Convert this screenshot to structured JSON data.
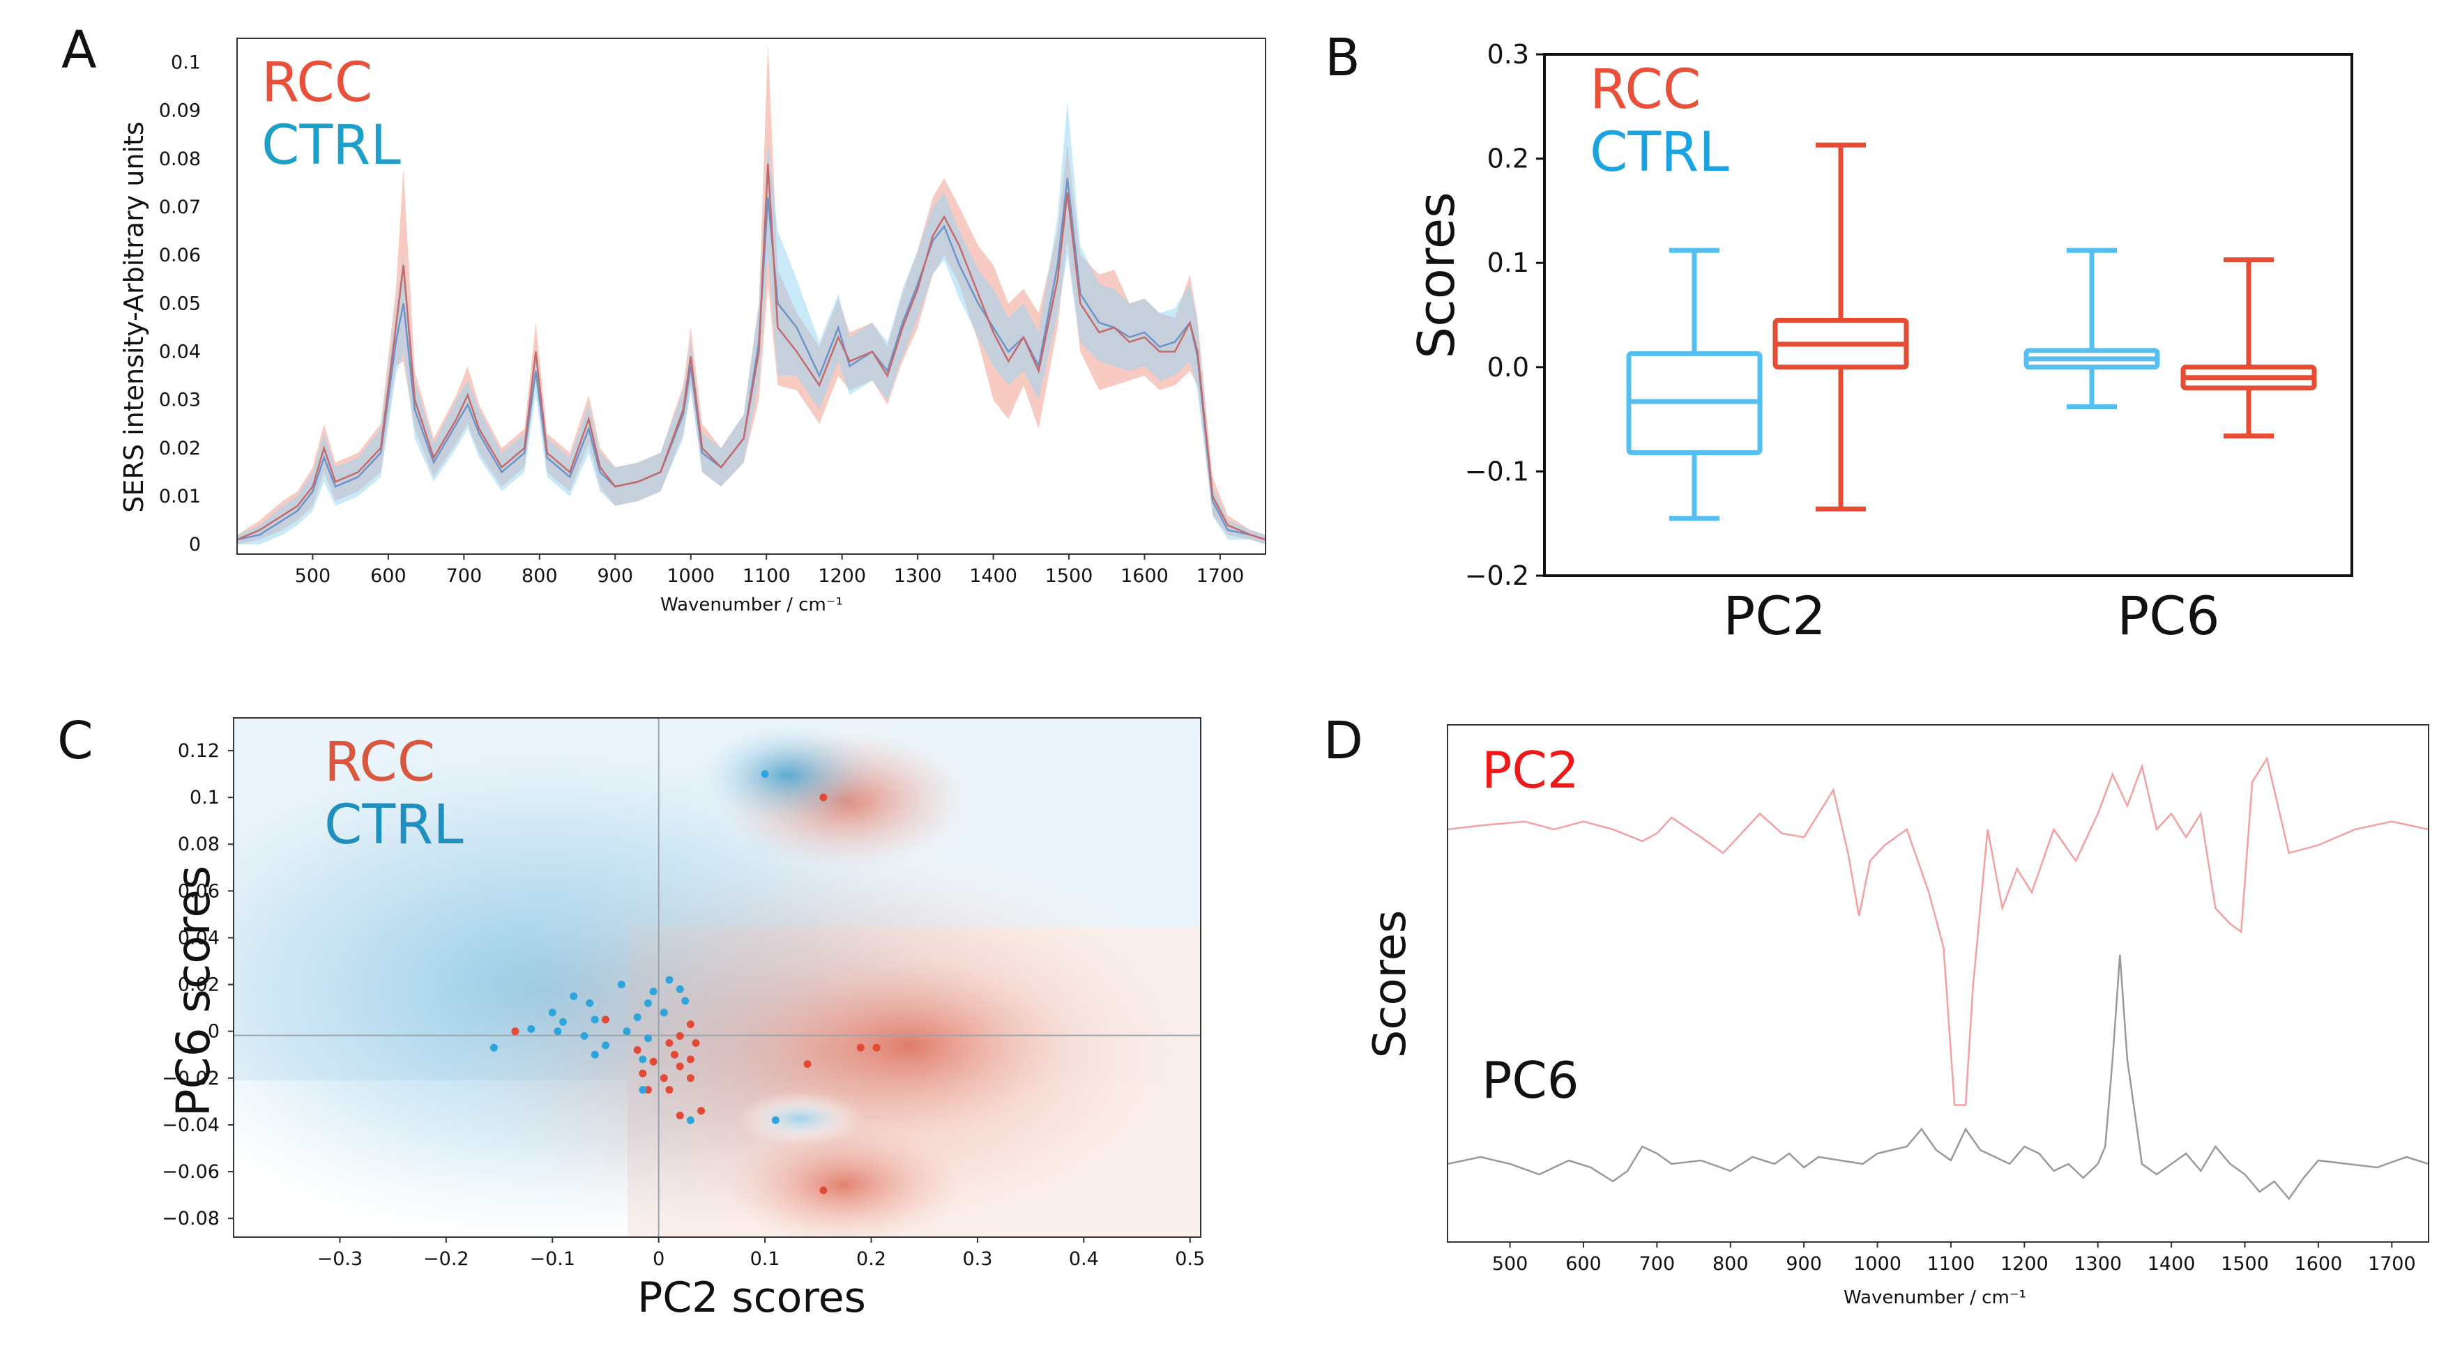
{
  "colors": {
    "rcc": "#e8503a",
    "ctrl": "#1f9fc8",
    "rcc_fill": "#f2a89a",
    "ctrl_fill": "#9dd6f2",
    "box_rcc": "#e64b33",
    "box_ctrl": "#55bff2",
    "pc2_line": "#f4a0a0",
    "pc6_line": "#999999"
  },
  "chart_data": [
    {
      "panel": "A",
      "type": "line",
      "ylabel": "SERS intensity-Arbitrary units",
      "xlabel": "Wavenumber / cm⁻¹",
      "xlim": [
        400,
        1760
      ],
      "ylim": [
        -0.002,
        0.105
      ],
      "xticks": [
        500,
        600,
        700,
        800,
        900,
        1000,
        1100,
        1200,
        1300,
        1400,
        1500,
        1600,
        1700
      ],
      "yticks": [
        0,
        0.01,
        0.02,
        0.03,
        0.04,
        0.05,
        0.06,
        0.07,
        0.08,
        0.09,
        0.1
      ],
      "ytick_labels": [
        "0",
        "0.01",
        "0.02",
        "0.03",
        "0.04",
        "0.05",
        "0.06",
        "0.07",
        "0.08",
        "0.09",
        "0.1"
      ],
      "legend": [
        "RCC",
        "CTRL"
      ],
      "series": [
        {
          "name": "RCC",
          "x": [
            400,
            430,
            460,
            480,
            500,
            515,
            530,
            560,
            590,
            610,
            620,
            635,
            660,
            690,
            705,
            720,
            750,
            780,
            795,
            810,
            840,
            865,
            880,
            900,
            930,
            960,
            990,
            1000,
            1015,
            1040,
            1070,
            1090,
            1102,
            1115,
            1140,
            1170,
            1195,
            1210,
            1240,
            1260,
            1280,
            1300,
            1320,
            1335,
            1355,
            1380,
            1400,
            1420,
            1440,
            1460,
            1485,
            1498,
            1515,
            1540,
            1560,
            1580,
            1600,
            1620,
            1640,
            1660,
            1670,
            1690,
            1710,
            1740,
            1760
          ],
          "mean": [
            0.001,
            0.003,
            0.006,
            0.008,
            0.012,
            0.02,
            0.013,
            0.015,
            0.02,
            0.045,
            0.058,
            0.03,
            0.018,
            0.026,
            0.031,
            0.024,
            0.016,
            0.02,
            0.04,
            0.019,
            0.015,
            0.026,
            0.016,
            0.012,
            0.013,
            0.015,
            0.028,
            0.039,
            0.02,
            0.016,
            0.022,
            0.04,
            0.079,
            0.045,
            0.04,
            0.033,
            0.043,
            0.038,
            0.04,
            0.035,
            0.045,
            0.053,
            0.064,
            0.068,
            0.062,
            0.052,
            0.044,
            0.038,
            0.043,
            0.036,
            0.055,
            0.073,
            0.05,
            0.044,
            0.045,
            0.042,
            0.043,
            0.04,
            0.04,
            0.046,
            0.04,
            0.01,
            0.004,
            0.002,
            0.001
          ],
          "band": [
            0.001,
            0.002,
            0.003,
            0.003,
            0.004,
            0.005,
            0.004,
            0.004,
            0.005,
            0.008,
            0.02,
            0.006,
            0.004,
            0.005,
            0.006,
            0.005,
            0.004,
            0.004,
            0.006,
            0.004,
            0.004,
            0.005,
            0.004,
            0.004,
            0.004,
            0.004,
            0.005,
            0.006,
            0.005,
            0.004,
            0.005,
            0.01,
            0.025,
            0.012,
            0.008,
            0.008,
            0.008,
            0.006,
            0.006,
            0.006,
            0.007,
            0.008,
            0.008,
            0.008,
            0.008,
            0.01,
            0.014,
            0.012,
            0.01,
            0.012,
            0.01,
            0.01,
            0.01,
            0.012,
            0.012,
            0.008,
            0.008,
            0.008,
            0.007,
            0.01,
            0.007,
            0.004,
            0.002,
            0.001,
            0.001
          ]
        },
        {
          "name": "CTRL",
          "x": [
            400,
            430,
            460,
            480,
            500,
            515,
            530,
            560,
            590,
            610,
            620,
            635,
            660,
            690,
            705,
            720,
            750,
            780,
            795,
            810,
            840,
            865,
            880,
            900,
            930,
            960,
            990,
            1000,
            1015,
            1040,
            1070,
            1090,
            1102,
            1115,
            1140,
            1170,
            1195,
            1210,
            1240,
            1260,
            1280,
            1300,
            1320,
            1335,
            1355,
            1380,
            1400,
            1420,
            1440,
            1460,
            1485,
            1498,
            1515,
            1540,
            1560,
            1580,
            1600,
            1620,
            1640,
            1660,
            1670,
            1690,
            1710,
            1740,
            1760
          ],
          "mean": [
            0.001,
            0.002,
            0.005,
            0.007,
            0.011,
            0.018,
            0.012,
            0.014,
            0.019,
            0.042,
            0.05,
            0.028,
            0.017,
            0.025,
            0.029,
            0.023,
            0.015,
            0.019,
            0.036,
            0.018,
            0.014,
            0.024,
            0.015,
            0.012,
            0.013,
            0.015,
            0.027,
            0.037,
            0.019,
            0.016,
            0.022,
            0.042,
            0.072,
            0.05,
            0.045,
            0.035,
            0.045,
            0.037,
            0.04,
            0.036,
            0.046,
            0.054,
            0.063,
            0.066,
            0.058,
            0.05,
            0.045,
            0.04,
            0.043,
            0.037,
            0.058,
            0.076,
            0.052,
            0.046,
            0.045,
            0.043,
            0.044,
            0.041,
            0.042,
            0.046,
            0.039,
            0.009,
            0.003,
            0.002,
            0.001
          ],
          "band": [
            0.001,
            0.002,
            0.003,
            0.003,
            0.004,
            0.005,
            0.004,
            0.004,
            0.005,
            0.007,
            0.01,
            0.006,
            0.004,
            0.005,
            0.005,
            0.005,
            0.004,
            0.004,
            0.005,
            0.004,
            0.004,
            0.005,
            0.004,
            0.004,
            0.004,
            0.004,
            0.005,
            0.005,
            0.004,
            0.004,
            0.005,
            0.008,
            0.012,
            0.015,
            0.01,
            0.007,
            0.007,
            0.006,
            0.006,
            0.006,
            0.007,
            0.007,
            0.007,
            0.007,
            0.007,
            0.007,
            0.008,
            0.007,
            0.007,
            0.007,
            0.01,
            0.016,
            0.01,
            0.008,
            0.008,
            0.007,
            0.007,
            0.007,
            0.007,
            0.008,
            0.007,
            0.003,
            0.002,
            0.001,
            0.001
          ]
        }
      ]
    },
    {
      "panel": "B",
      "type": "box",
      "ylabel": "Scores",
      "ylim": [
        -0.2,
        0.3
      ],
      "yticks": [
        -0.2,
        -0.1,
        0.0,
        0.1,
        0.2,
        0.3
      ],
      "ytick_labels": [
        "−0.2",
        "−0.1",
        "0.0",
        "0.1",
        "0.2",
        "0.3"
      ],
      "categories": [
        "PC2",
        "PC6"
      ],
      "legend": [
        "RCC",
        "CTRL"
      ],
      "boxes": [
        {
          "group": "CTRL",
          "category": "PC2",
          "whislo": -0.145,
          "q1": -0.082,
          "med": -0.033,
          "q3": 0.013,
          "whishi": 0.112
        },
        {
          "group": "RCC",
          "category": "PC2",
          "whislo": -0.136,
          "q1": 0.0,
          "med": 0.022,
          "q3": 0.045,
          "whishi": 0.213
        },
        {
          "group": "CTRL",
          "category": "PC6",
          "whislo": -0.038,
          "q1": 0.0,
          "med": 0.008,
          "q3": 0.016,
          "whishi": 0.112
        },
        {
          "group": "RCC",
          "category": "PC6",
          "whislo": -0.066,
          "q1": -0.02,
          "med": -0.01,
          "q3": 0.0,
          "whishi": 0.103
        }
      ]
    },
    {
      "panel": "C",
      "type": "scatter",
      "xlabel": "PC2 scores",
      "ylabel": "PC6 scores",
      "xlim": [
        -0.4,
        0.51
      ],
      "ylim": [
        -0.088,
        0.134
      ],
      "xticks": [
        -0.3,
        -0.2,
        -0.1,
        0,
        0.1,
        0.2,
        0.3,
        0.4,
        0.5
      ],
      "xtick_labels": [
        "−0.3",
        "−0.2",
        "−0.1",
        "0",
        "0.1",
        "0.2",
        "0.3",
        "0.4",
        "0.5"
      ],
      "yticks": [
        -0.08,
        -0.06,
        -0.04,
        -0.02,
        0,
        0.02,
        0.04,
        0.06,
        0.08,
        0.1,
        0.12
      ],
      "ytick_labels": [
        "−0.08",
        "−0.06",
        "−0.04",
        "−0.02",
        "0",
        "0.02",
        "0.04",
        "0.06",
        "0.08",
        "0.1",
        "0.12"
      ],
      "legend": [
        "RCC",
        "CTRL"
      ],
      "series": [
        {
          "name": "RCC",
          "points": [
            [
              0.155,
              0.1
            ],
            [
              -0.135,
              0.0
            ],
            [
              -0.05,
              0.005
            ],
            [
              0.03,
              0.003
            ],
            [
              0.02,
              -0.002
            ],
            [
              0.01,
              -0.005
            ],
            [
              0.035,
              -0.005
            ],
            [
              -0.02,
              -0.008
            ],
            [
              0.015,
              -0.01
            ],
            [
              0.03,
              -0.012
            ],
            [
              -0.005,
              -0.013
            ],
            [
              0.02,
              -0.015
            ],
            [
              -0.015,
              -0.018
            ],
            [
              0.005,
              -0.02
            ],
            [
              0.03,
              -0.02
            ],
            [
              -0.01,
              -0.025
            ],
            [
              0.01,
              -0.025
            ],
            [
              0.02,
              -0.036
            ],
            [
              0.04,
              -0.034
            ],
            [
              0.14,
              -0.014
            ],
            [
              0.19,
              -0.007
            ],
            [
              0.205,
              -0.007
            ],
            [
              0.155,
              -0.068
            ]
          ]
        },
        {
          "name": "CTRL",
          "points": [
            [
              0.1,
              0.11
            ],
            [
              -0.035,
              0.02
            ],
            [
              -0.005,
              0.017
            ],
            [
              0.01,
              0.022
            ],
            [
              0.02,
              0.018
            ],
            [
              -0.08,
              0.015
            ],
            [
              -0.065,
              0.012
            ],
            [
              -0.01,
              0.012
            ],
            [
              0.025,
              0.013
            ],
            [
              -0.1,
              0.008
            ],
            [
              -0.09,
              0.004
            ],
            [
              -0.06,
              0.005
            ],
            [
              -0.02,
              0.006
            ],
            [
              0.005,
              0.008
            ],
            [
              -0.12,
              0.001
            ],
            [
              -0.095,
              0.0
            ],
            [
              -0.07,
              -0.002
            ],
            [
              -0.03,
              0.0
            ],
            [
              -0.01,
              -0.003
            ],
            [
              -0.05,
              -0.006
            ],
            [
              -0.155,
              -0.007
            ],
            [
              -0.06,
              -0.01
            ],
            [
              -0.015,
              -0.012
            ],
            [
              -0.015,
              -0.025
            ],
            [
              0.03,
              -0.038
            ],
            [
              0.11,
              -0.038
            ]
          ]
        }
      ]
    },
    {
      "panel": "D",
      "type": "line",
      "ylabel": "Scores",
      "xlabel": "Wavenumber / cm⁻¹",
      "xlim": [
        415,
        1750
      ],
      "xticks": [
        500,
        600,
        700,
        800,
        900,
        1000,
        1100,
        1200,
        1300,
        1400,
        1500,
        1600,
        1700
      ],
      "series": [
        {
          "name": "PC2",
          "x": [
            415,
            460,
            520,
            560,
            600,
            640,
            680,
            700,
            720,
            760,
            790,
            810,
            840,
            870,
            900,
            940,
            960,
            975,
            990,
            1010,
            1040,
            1070,
            1090,
            1105,
            1120,
            1130,
            1150,
            1170,
            1190,
            1210,
            1240,
            1270,
            1300,
            1320,
            1340,
            1360,
            1380,
            1400,
            1420,
            1440,
            1460,
            1480,
            1495,
            1510,
            1530,
            1560,
            1600,
            1650,
            1700,
            1750
          ],
          "y": [
            0.0,
            0.005,
            0.01,
            0.0,
            0.01,
            0.0,
            -0.015,
            -0.005,
            0.015,
            -0.01,
            -0.03,
            -0.01,
            0.02,
            -0.005,
            -0.01,
            0.05,
            -0.03,
            -0.11,
            -0.04,
            -0.02,
            0.0,
            -0.08,
            -0.15,
            -0.35,
            -0.35,
            -0.2,
            0.0,
            -0.1,
            -0.05,
            -0.08,
            0.0,
            -0.04,
            0.02,
            0.07,
            0.03,
            0.08,
            0.0,
            0.02,
            -0.01,
            0.02,
            -0.1,
            -0.12,
            -0.13,
            0.06,
            0.09,
            -0.03,
            -0.02,
            0.0,
            0.01,
            0.0
          ]
        },
        {
          "name": "PC6",
          "x": [
            415,
            460,
            500,
            540,
            580,
            610,
            640,
            660,
            680,
            700,
            720,
            760,
            800,
            830,
            860,
            880,
            900,
            920,
            950,
            980,
            1000,
            1020,
            1040,
            1060,
            1080,
            1100,
            1120,
            1140,
            1160,
            1180,
            1200,
            1220,
            1240,
            1260,
            1280,
            1300,
            1310,
            1320,
            1330,
            1340,
            1360,
            1380,
            1400,
            1420,
            1440,
            1460,
            1480,
            1500,
            1520,
            1540,
            1560,
            1580,
            1600,
            1640,
            1680,
            1720,
            1750
          ],
          "y": [
            0.0,
            0.02,
            0.0,
            -0.03,
            0.01,
            -0.01,
            -0.05,
            -0.02,
            0.05,
            0.03,
            0.0,
            0.01,
            -0.02,
            0.02,
            0.0,
            0.03,
            -0.01,
            0.02,
            0.01,
            0.0,
            0.03,
            0.04,
            0.05,
            0.1,
            0.04,
            0.01,
            0.1,
            0.04,
            0.02,
            0.0,
            0.05,
            0.03,
            -0.02,
            0.0,
            -0.04,
            0.0,
            0.05,
            0.3,
            0.6,
            0.3,
            0.0,
            -0.03,
            0.0,
            0.03,
            -0.02,
            0.05,
            0.0,
            -0.03,
            -0.08,
            -0.05,
            -0.1,
            -0.04,
            0.01,
            0.0,
            -0.01,
            0.02,
            0.0
          ]
        }
      ]
    }
  ],
  "panels": {
    "A": {
      "letter": "A",
      "legend_rcc": "RCC",
      "legend_ctrl": "CTRL",
      "ylabel": "SERS intensity-Arbitrary units",
      "xlabel": "Wavenumber / cm⁻¹"
    },
    "B": {
      "letter": "B",
      "legend_rcc": "RCC",
      "legend_ctrl": "CTRL",
      "ylabel": "Scores",
      "cat1": "PC2",
      "cat2": "PC6"
    },
    "C": {
      "letter": "C",
      "legend_rcc": "RCC",
      "legend_ctrl": "CTRL",
      "xlabel": "PC2 scores",
      "ylabel": "PC6 scores"
    },
    "D": {
      "letter": "D",
      "label_pc2": "PC2",
      "label_pc6": "PC6",
      "ylabel": "Scores",
      "xlabel": "Wavenumber / cm⁻¹"
    }
  }
}
